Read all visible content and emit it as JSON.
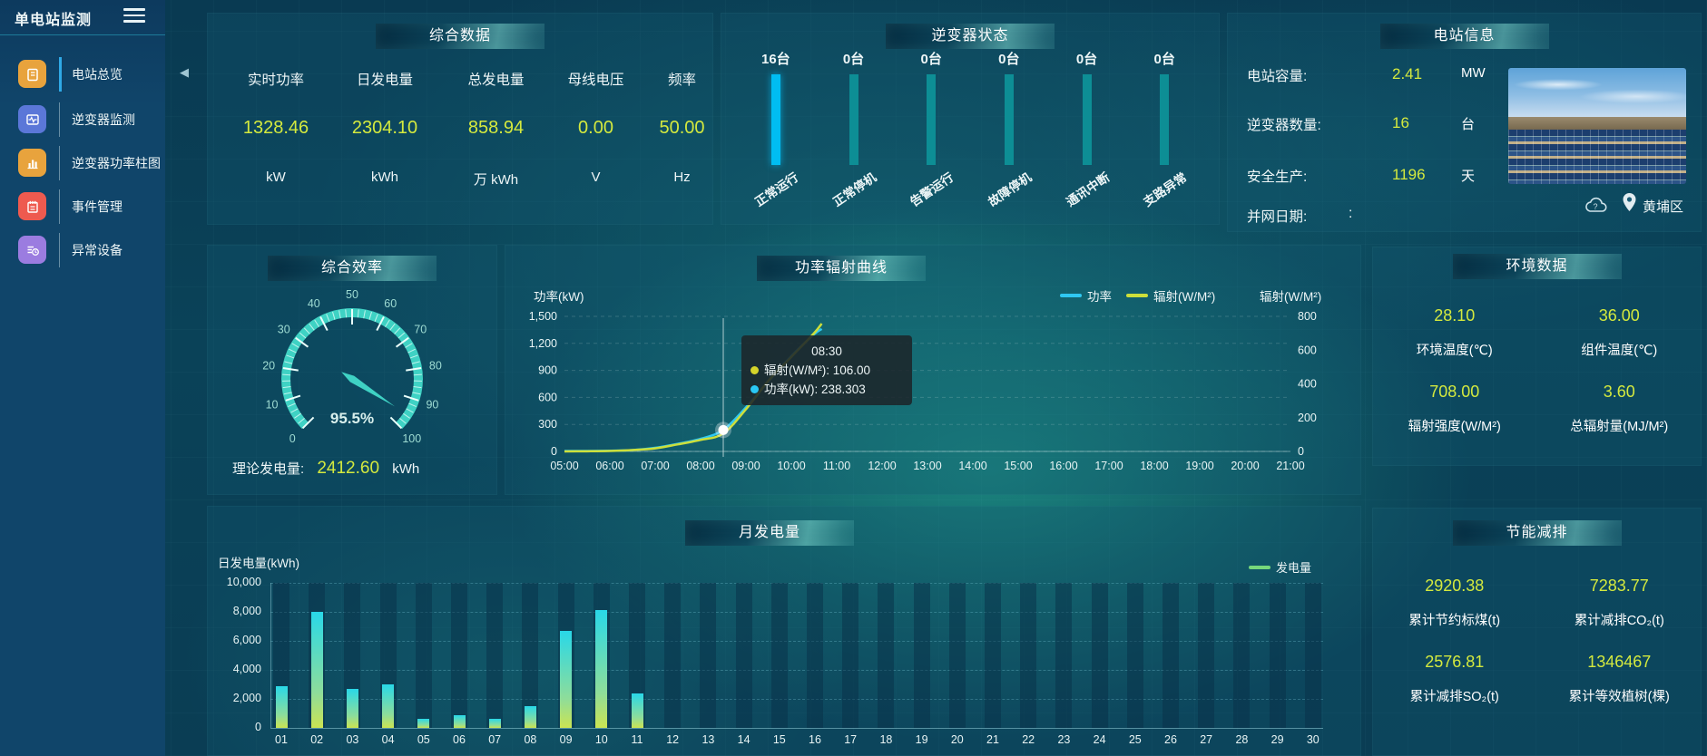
{
  "sidebar": {
    "title": "单电站监测",
    "items": [
      {
        "key": "station-overview",
        "label": "电站总览",
        "icon": "report",
        "color": "#e8a33d",
        "active": true
      },
      {
        "key": "inverter-monitor",
        "label": "逆变器监测",
        "icon": "monitor-pulse",
        "color": "#5b77d8",
        "active": false
      },
      {
        "key": "inverter-power-chart",
        "label": "逆变器功率柱图",
        "icon": "bar-chart",
        "color": "#e8a33d",
        "active": false
      },
      {
        "key": "event-management",
        "label": "事件管理",
        "icon": "memo",
        "color": "#ee5a4f",
        "active": false
      },
      {
        "key": "abnormal-devices",
        "label": "异常设备",
        "icon": "device-list",
        "color": "#9b7ce0",
        "active": false
      }
    ]
  },
  "icons": {
    "collapse_arrow": "◀"
  },
  "overview_panel": {
    "title": "综合数据",
    "metrics": [
      {
        "label": "实时功率",
        "value": "1328.46",
        "unit": "kW"
      },
      {
        "label": "日发电量",
        "value": "2304.10",
        "unit": "kWh"
      },
      {
        "label": "总发电量",
        "value": "858.94",
        "unit": "万 kWh"
      },
      {
        "label": "母线电压",
        "value": "0.00",
        "unit": "V"
      },
      {
        "label": "频率",
        "value": "50.00",
        "unit": "Hz"
      }
    ]
  },
  "inverter_panel": {
    "title": "逆变器状态",
    "active_color": "#00bdf2",
    "idle_color": "#0d8e95",
    "bars": [
      {
        "count": "16台",
        "label": "正常运行",
        "active": true
      },
      {
        "count": "0台",
        "label": "正常停机",
        "active": false
      },
      {
        "count": "0台",
        "label": "告警运行",
        "active": false
      },
      {
        "count": "0台",
        "label": "故障停机",
        "active": false
      },
      {
        "count": "0台",
        "label": "通讯中断",
        "active": false
      },
      {
        "count": "0台",
        "label": "支路异常",
        "active": false
      }
    ]
  },
  "station_panel": {
    "title": "电站信息",
    "rows": [
      {
        "label": "电站容量:",
        "value": "2.41",
        "unit": "MW"
      },
      {
        "label": "逆变器数量:",
        "value": "16",
        "unit": "台"
      },
      {
        "label": "安全生产:",
        "value": "1196",
        "unit": "天"
      }
    ],
    "grid_date_label": "并网日期:",
    "grid_date_value": ":",
    "location": "黄埔区"
  },
  "efficiency_panel": {
    "theory_label": "理论发电量:",
    "theory_value": "2412.60",
    "theory_unit": "kWh"
  },
  "env_panel": {
    "title": "环境数据",
    "metrics": [
      {
        "value": "28.10",
        "label": "环境温度(℃)"
      },
      {
        "value": "36.00",
        "label": "组件温度(℃)"
      },
      {
        "value": "708.00",
        "label": "辐射强度(W/M²)"
      },
      {
        "value": "3.60",
        "label": "总辐射量(MJ/M²)"
      }
    ]
  },
  "saving_panel": {
    "title": "节能减排",
    "metrics": [
      {
        "value": "2920.38",
        "label": "累计节约标煤(t)"
      },
      {
        "value": "7283.77",
        "label": "累计减排CO₂(t)"
      },
      {
        "value": "2576.81",
        "label": "累计减排SO₂(t)"
      },
      {
        "value": "1346467",
        "label": "累计等效植树(棵)"
      }
    ]
  },
  "chart_data": [
    {
      "id": "power-radiation-curve",
      "type": "line",
      "title": "功率辐射曲线",
      "y_left": {
        "name": "功率(kW)",
        "min": 0,
        "max": 1500,
        "ticks": [
          "1,500",
          "1,200",
          "900",
          "600",
          "300",
          "0"
        ]
      },
      "y_right": {
        "name": "辐射(W/M²)",
        "min": 0,
        "max": 800,
        "ticks": [
          "800",
          "600",
          "400",
          "200",
          "0"
        ]
      },
      "x_labels": [
        "05:00",
        "06:00",
        "07:00",
        "08:00",
        "09:00",
        "10:00",
        "11:00",
        "12:00",
        "13:00",
        "14:00",
        "15:00",
        "16:00",
        "17:00",
        "18:00",
        "19:00",
        "20:00",
        "21:00"
      ],
      "x_range": [
        5,
        21
      ],
      "legend": [
        {
          "name": "功率",
          "color": "#2fc8f2"
        },
        {
          "name": "辐射(W/M²)",
          "color": "#cddf3a"
        }
      ],
      "series": [
        {
          "name": "功率",
          "axis": "left",
          "color": "#2fc8f2",
          "points": [
            [
              5,
              5
            ],
            [
              5.5,
              5
            ],
            [
              6,
              8
            ],
            [
              6.5,
              15
            ],
            [
              7,
              40
            ],
            [
              7.5,
              85
            ],
            [
              8,
              140
            ],
            [
              8.5,
              238.3
            ],
            [
              9,
              490
            ],
            [
              9.5,
              780
            ],
            [
              10,
              1060
            ],
            [
              10.5,
              1300
            ],
            [
              10.67,
              1360
            ]
          ]
        },
        {
          "name": "辐射",
          "axis": "right",
          "color": "#cddf3a",
          "points": [
            [
              5,
              0
            ],
            [
              5.5,
              1
            ],
            [
              6,
              3
            ],
            [
              6.5,
              8
            ],
            [
              7,
              18
            ],
            [
              7.5,
              42
            ],
            [
              8,
              68
            ],
            [
              8.5,
              106
            ],
            [
              9,
              250
            ],
            [
              9.5,
              420
            ],
            [
              10,
              560
            ],
            [
              10.5,
              700
            ],
            [
              10.67,
              757
            ]
          ]
        }
      ],
      "tooltip": {
        "time": "08:30",
        "rows": [
          {
            "dot": "#d4d42a",
            "text": "辐射(W/M²): 106.00"
          },
          {
            "dot": "#2ac8f5",
            "text": "功率(kW): 238.303"
          }
        ],
        "marker_x": 8.5,
        "marker_value": 238.3
      }
    },
    {
      "id": "monthly-energy",
      "type": "bar",
      "title": "月发电量",
      "ylabel": "日发电量(kWh)",
      "legend": "发电量",
      "legend_color": "#76d77b",
      "ylim": [
        0,
        10000
      ],
      "yticks": [
        "10,000",
        "8,000",
        "6,000",
        "4,000",
        "2,000",
        "0"
      ],
      "categories": [
        "01",
        "02",
        "03",
        "04",
        "05",
        "06",
        "07",
        "08",
        "09",
        "10",
        "11",
        "12",
        "13",
        "14",
        "15",
        "16",
        "17",
        "18",
        "19",
        "20",
        "21",
        "22",
        "23",
        "24",
        "25",
        "26",
        "27",
        "28",
        "29",
        "30"
      ],
      "values": [
        2900,
        8000,
        2700,
        3000,
        650,
        900,
        650,
        1500,
        6700,
        8100,
        2400,
        0,
        0,
        0,
        0,
        0,
        0,
        0,
        0,
        0,
        0,
        0,
        0,
        0,
        0,
        0,
        0,
        0,
        0,
        0
      ]
    },
    {
      "id": "efficiency-gauge",
      "type": "gauge",
      "title": "综合效率",
      "min": 0,
      "max": 100,
      "value": 95.5,
      "display": "95.5%",
      "tick_labels": [
        "0",
        "10",
        "20",
        "30",
        "40",
        "50",
        "60",
        "70",
        "80",
        "90",
        "100"
      ],
      "color": "#3fd2c4"
    }
  ]
}
